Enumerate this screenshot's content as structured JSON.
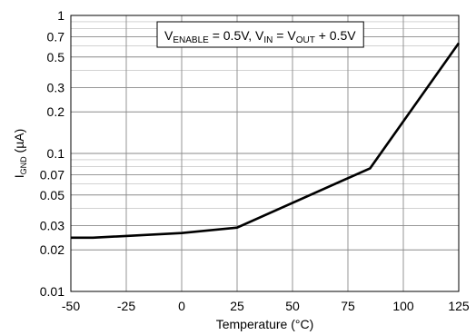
{
  "chart_data": {
    "type": "line",
    "title": "",
    "xlabel": "Temperature (°C)",
    "ylabel": {
      "main": "I",
      "sub": "GND",
      "unit": " (µA)"
    },
    "xlim": [
      -50,
      125
    ],
    "ylim": [
      0.01,
      1
    ],
    "y_scale": "log",
    "grid": true,
    "x_ticks": [
      "-50",
      "-25",
      "0",
      "25",
      "50",
      "75",
      "100",
      "125"
    ],
    "y_ticks": [
      "0.01",
      "0.02",
      "0.03",
      "0.05",
      "0.07",
      "0.1",
      "0.2",
      "0.3",
      "0.5",
      "0.7",
      "1"
    ],
    "series": [
      {
        "name": "",
        "x": [
          -50,
          -40,
          0,
          25,
          85,
          125
        ],
        "y": [
          0.0245,
          0.0245,
          0.0265,
          0.029,
          0.078,
          0.63
        ]
      }
    ],
    "annotation": {
      "parts": [
        {
          "text": "V",
          "sub": "ENABLE"
        },
        {
          "text": " = 0.5V, V",
          "sub": "IN"
        },
        {
          "text": " = V",
          "sub": "OUT"
        },
        {
          "text": " + 0.5V",
          "sub": ""
        }
      ]
    }
  }
}
